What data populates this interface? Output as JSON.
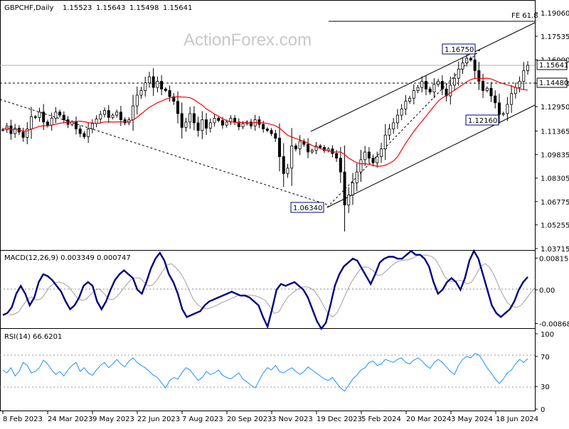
{
  "chart_data": [
    {
      "type": "candlestick",
      "title": "GBPCHF,Daily",
      "ohlc_header": [
        "1.15523",
        "1.15643",
        "1.15498",
        "1.15641"
      ],
      "watermark": "ActionForex.com",
      "ylim": [
        1.03715,
        1.1906
      ],
      "yticks": [
        "1.19060",
        "1.17535",
        "1.16000",
        "1.14480",
        "1.12950",
        "1.11365",
        "1.09835",
        "1.08305",
        "1.06775",
        "1.05255",
        "1.03715"
      ],
      "price_label": "1.15641",
      "level_label": "1.14480",
      "fe_label": "FE 61.8",
      "annotations": [
        "1.16750",
        "1.12160",
        "1.06340"
      ],
      "close_series": [
        1.1145,
        1.117,
        1.112,
        1.1155,
        1.113,
        1.1095,
        1.115,
        1.123,
        1.1225,
        1.126,
        1.1195,
        1.1175,
        1.122,
        1.126,
        1.124,
        1.121,
        1.118,
        1.1195,
        1.115,
        1.112,
        1.11,
        1.115,
        1.1185,
        1.1215,
        1.1245,
        1.127,
        1.1225,
        1.124,
        1.126,
        1.121,
        1.119,
        1.121,
        1.13,
        1.137,
        1.14,
        1.145,
        1.149,
        1.142,
        1.146,
        1.141,
        1.14,
        1.136,
        1.133,
        1.125,
        1.116,
        1.1195,
        1.125,
        1.119,
        1.114,
        1.121,
        1.1155,
        1.119,
        1.122,
        1.1205,
        1.1175,
        1.1195,
        1.122,
        1.1195,
        1.1165,
        1.1185,
        1.1195,
        1.117,
        1.121,
        1.118,
        1.115,
        1.114,
        1.112,
        1.109,
        1.097,
        1.086,
        1.0895,
        1.104,
        1.102,
        1.107,
        1.105,
        1.1,
        1.101,
        1.104,
        1.103,
        1.101,
        1.102,
        1.099,
        1.096,
        1.087,
        1.0655,
        1.072,
        1.08,
        1.087,
        1.095,
        1.1,
        1.096,
        1.093,
        1.097,
        1.102,
        1.111,
        1.115,
        1.119,
        1.124,
        1.128,
        1.133,
        1.135,
        1.14,
        1.142,
        1.146,
        1.141,
        1.139,
        1.144,
        1.146,
        1.141,
        1.1365,
        1.1435,
        1.148,
        1.154,
        1.158,
        1.161,
        1.16,
        1.153,
        1.146,
        1.14,
        1.1415,
        1.1365,
        1.132,
        1.1245,
        1.125,
        1.131,
        1.138,
        1.142,
        1.146,
        1.153,
        1.1564
      ]
    },
    {
      "type": "line",
      "title": "MACD(12,26,9) 0.003349 0.000747",
      "yticks": [
        "0.00815",
        "0.00",
        "-0.008681"
      ],
      "ylim": [
        -0.0095,
        0.0095
      ],
      "series": [
        {
          "values": [
            -0.0065,
            -0.006,
            -0.0045,
            -0.001,
            0.001,
            -0.001,
            -0.004,
            -0.002,
            0.002,
            0.004,
            0.0035,
            0.0025,
            0.001,
            -0.0005,
            -0.003,
            -0.005,
            -0.004,
            -0.002,
            0.001,
            0.002,
            0.001,
            -0.003,
            -0.005,
            -0.003,
            0.0,
            0.0025,
            0.004,
            0.005,
            0.004,
            0.003,
            0.0,
            -0.001,
            0.002,
            0.0055,
            0.008,
            0.0095,
            0.0075,
            0.004,
            0.002,
            -0.001,
            -0.005,
            -0.007,
            -0.0065,
            -0.006,
            -0.0055,
            -0.004,
            -0.003,
            -0.0025,
            -0.002,
            -0.0015,
            -0.001,
            -0.0005,
            -0.001,
            -0.0015,
            -0.0015,
            -0.002,
            -0.003,
            -0.004,
            -0.007,
            -0.0095,
            -0.005,
            0.0,
            0.0015,
            0.001,
            0.0015,
            0.002,
            0.001,
            0.0,
            -0.002,
            -0.005,
            -0.008,
            -0.01,
            -0.0085,
            -0.004,
            0.001,
            0.004,
            0.006,
            0.007,
            0.008,
            0.0075,
            0.0055,
            0.0035,
            0.0015,
            0.004,
            0.007,
            0.008,
            0.0085,
            0.0085,
            0.008,
            0.008,
            0.009,
            0.01,
            0.009,
            0.009,
            0.008,
            0.006,
            0.002,
            -0.001,
            0.0,
            0.002,
            0.003,
            0.002,
            0.0,
            0.003,
            0.0075,
            0.01,
            0.008,
            0.004,
            0.0,
            -0.004,
            -0.006,
            -0.007,
            -0.006,
            -0.005,
            -0.003,
            0.0,
            0.002,
            0.0033
          ]
        }
      ]
    },
    {
      "type": "line",
      "title": "RSI(14) 66.6201",
      "yticks": [
        "100",
        "70",
        "30",
        "0"
      ],
      "ylim": [
        0,
        100
      ],
      "levels": [
        70,
        30
      ],
      "series": [
        {
          "values": [
            52,
            48,
            55,
            44,
            50,
            62,
            58,
            48,
            50,
            55,
            65,
            60,
            52,
            46,
            50,
            44,
            52,
            58,
            62,
            50,
            55,
            48,
            45,
            52,
            58,
            62,
            55,
            60,
            66,
            60,
            56,
            64,
            68,
            62,
            58,
            55,
            50,
            45,
            42,
            35,
            28,
            38,
            42,
            40,
            48,
            55,
            52,
            45,
            38,
            42,
            50,
            46,
            48,
            52,
            45,
            42,
            40,
            44,
            48,
            40,
            36,
            32,
            28,
            38,
            48,
            55,
            52,
            58,
            50,
            48,
            52,
            55,
            50,
            46,
            50,
            56,
            52,
            48,
            44,
            40,
            38,
            42,
            35,
            28,
            24,
            32,
            40,
            45,
            52,
            55,
            62,
            64,
            58,
            60,
            66,
            64,
            62,
            66,
            68,
            62,
            60,
            65,
            68,
            64,
            58,
            54,
            62,
            66,
            62,
            56,
            50,
            46,
            58,
            66,
            70,
            68,
            74,
            72,
            64,
            55,
            48,
            40,
            34,
            40,
            48,
            52,
            60,
            66,
            62,
            67
          ]
        }
      ]
    }
  ],
  "x_axis": {
    "labels": [
      "8 Feb 2023",
      "24 Mar 2023",
      "9 May 2023",
      "22 Jun 2023",
      "7 Aug 2023",
      "20 Sep 2023",
      "3 Nov 2023",
      "19 Dec 2023",
      "5 Feb 2024",
      "20 Mar 2024",
      "3 May 2024",
      "18 Jun 2024"
    ]
  },
  "colors": {
    "candle": "#000000",
    "ma": "#ff0000",
    "macd": "#000080",
    "signal": "#a0a0a0",
    "rsi": "#1e90ff",
    "label_border": "#000080",
    "price_tag_bg": "#ffffff",
    "grid": "#000000"
  }
}
